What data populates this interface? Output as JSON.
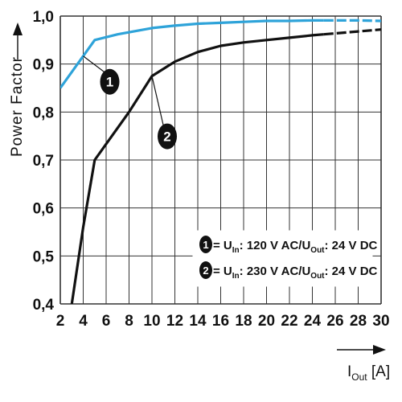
{
  "chart_data": {
    "type": "line",
    "title": "",
    "ylabel": "Power Factor",
    "xlabel": {
      "main": "I",
      "sub": "Out",
      "unit": " [A]"
    },
    "xlim": [
      2,
      30
    ],
    "ylim": [
      0.4,
      1.0
    ],
    "x_ticks": [
      2,
      4,
      6,
      8,
      10,
      12,
      14,
      16,
      18,
      20,
      22,
      24,
      26,
      28,
      30
    ],
    "x_tick_labels": [
      "2",
      "4",
      "6",
      "8",
      "10",
      "12",
      "14",
      "16",
      "18",
      "20",
      "22",
      "24",
      "26",
      "28",
      "30"
    ],
    "y_ticks": [
      0.4,
      0.5,
      0.6,
      0.7,
      0.8,
      0.9,
      1.0
    ],
    "y_tick_labels": [
      "0,4",
      "0,5",
      "0,6",
      "0,7",
      "0,8",
      "0,9",
      "1,0"
    ],
    "grid": true,
    "series": [
      {
        "name": "1",
        "color": "#2ea3d9",
        "x": [
          2,
          5,
          7,
          10,
          12,
          14,
          16,
          18,
          20,
          22,
          24,
          26,
          28,
          30
        ],
        "y": [
          0.85,
          0.95,
          0.962,
          0.975,
          0.98,
          0.984,
          0.986,
          0.988,
          0.99,
          0.99,
          0.991,
          0.991,
          0.991,
          0.99
        ],
        "dashed_from": 25
      },
      {
        "name": "2",
        "color": "#111111",
        "x": [
          3,
          4,
          5,
          8,
          10,
          12,
          14,
          16,
          18,
          20,
          22,
          24,
          26,
          28,
          30
        ],
        "y": [
          0.4,
          0.56,
          0.7,
          0.8,
          0.875,
          0.905,
          0.925,
          0.938,
          0.945,
          0.95,
          0.955,
          0.96,
          0.964,
          0.968,
          0.972
        ],
        "dashed_from": 25
      }
    ],
    "markers": [
      {
        "label": "1",
        "series": 0,
        "at_x": 4
      },
      {
        "label": "2",
        "series": 1,
        "at_x": 10
      }
    ],
    "legend": {
      "placement": "lower-right",
      "entries": [
        {
          "badge": "1",
          "text": [
            [
              "= U",
              ""
            ],
            [
              "In",
              "sub"
            ],
            [
              ": 120 V AC/U",
              ""
            ],
            [
              "Out",
              "sub"
            ],
            [
              ": 24 V DC",
              ""
            ]
          ]
        },
        {
          "badge": "2",
          "text": [
            [
              "= U",
              ""
            ],
            [
              "In",
              "sub"
            ],
            [
              ": 230 V AC/U",
              ""
            ],
            [
              "Out",
              "sub"
            ],
            [
              ": 24 V DC",
              ""
            ]
          ]
        }
      ]
    }
  }
}
